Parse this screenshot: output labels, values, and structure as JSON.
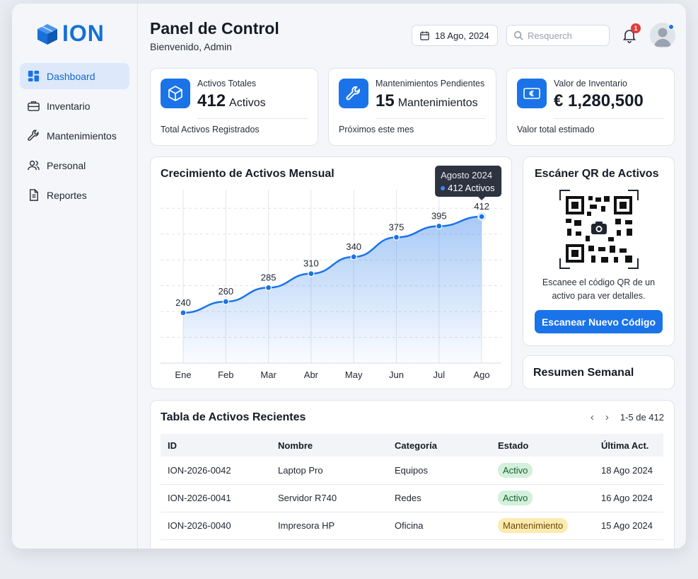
{
  "brand": {
    "name": "ION"
  },
  "sidebar": {
    "items": [
      {
        "label": "Dashboard",
        "icon": "dashboard-icon",
        "active": true
      },
      {
        "label": "Inventario",
        "icon": "briefcase-icon"
      },
      {
        "label": "Mantenimientos",
        "icon": "wrench-icon"
      },
      {
        "label": "Personal",
        "icon": "users-icon"
      },
      {
        "label": "Reportes",
        "icon": "document-icon"
      }
    ]
  },
  "header": {
    "title": "Panel de Control",
    "subtitle": "Bienvenido, Admin",
    "date": "18 Ago, 2024",
    "search_placeholder": "Resquerch",
    "notifications": "1"
  },
  "stats": [
    {
      "label": "Activos Totales",
      "value": "412",
      "unit": "Activos",
      "footer": "Total Activos Registrados",
      "icon": "cube-icon"
    },
    {
      "label": "Mantenimientos Pendientes",
      "value": "15",
      "unit": "Mantenimientos",
      "footer": "Próximos este mes",
      "icon": "wrench-icon"
    },
    {
      "label": "Valor de Inventario",
      "value": "€ 1,280,500",
      "unit": "",
      "footer": "Valor total estimado",
      "icon": "euro-bill-icon"
    }
  ],
  "growth": {
    "title": "Crecimiento de Activos Mensual",
    "tooltip_title": "Agosto 2024",
    "tooltip_value": "412 Activos"
  },
  "chart_data": {
    "type": "area",
    "title": "Crecimiento de Activos Mensual",
    "categories": [
      "Ene",
      "Feb",
      "Mar",
      "Abr",
      "May",
      "Jun",
      "Jul",
      "Ago"
    ],
    "series": [
      {
        "values": [
          240,
          260,
          285,
          310,
          340,
          375,
          395,
          412
        ]
      }
    ],
    "ylim": [
      150,
      450
    ],
    "grid": true,
    "accent": "#1a73e8"
  },
  "qr": {
    "title": "Escáner QR de Activos",
    "text": "Escanee el código QR de un activo para ver detalles.",
    "button": "Escanear Nuevo Código"
  },
  "weekly": {
    "title": "Resumen Semanal"
  },
  "table": {
    "title": "Tabla de Activos Recientes",
    "pagination": "1-5 de 412",
    "columns": [
      "ID",
      "Nombre",
      "Categoría",
      "Estado",
      "Última Act."
    ],
    "rows": [
      {
        "id": "ION-2026-0042",
        "name": "Laptop Pro",
        "category": "Equipos",
        "status": "Activo",
        "updated": "18 Ago 2024"
      },
      {
        "id": "ION-2026-0041",
        "name": "Servidor R740",
        "category": "Redes",
        "status": "Activo",
        "updated": "16 Ago 2024"
      },
      {
        "id": "ION-2026-0040",
        "name": "Impresora HP",
        "category": "Oficina",
        "status": "Mantenimiento",
        "updated": "15 Ago 2024"
      }
    ]
  },
  "colors": {
    "primary": "#1a73e8",
    "active_bg": "#dde9fb",
    "status_active": "#d2f0db",
    "status_maintenance": "#fdeab0",
    "badge": "#e5383b"
  }
}
